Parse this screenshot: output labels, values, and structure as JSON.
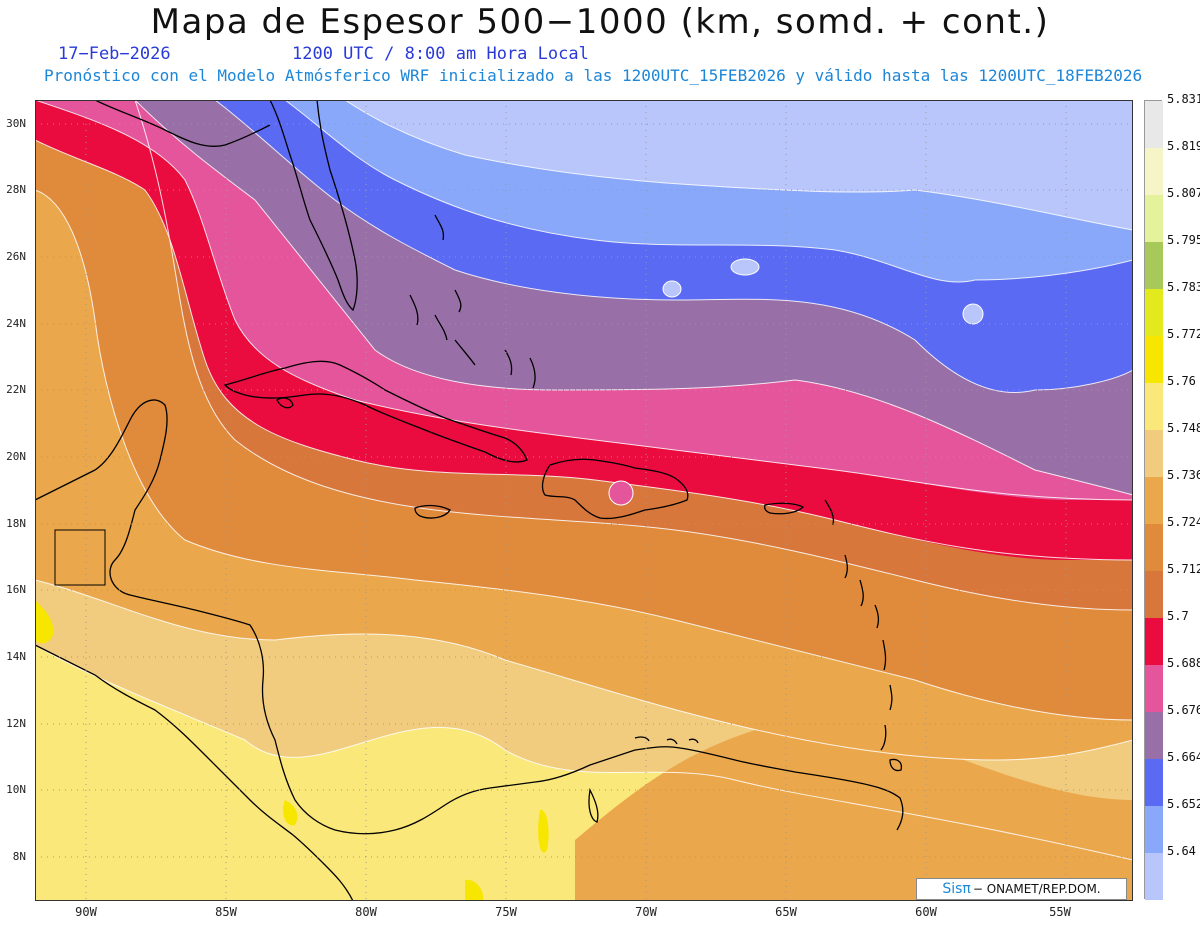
{
  "header": {
    "title": "Mapa de Espesor 500−1000 (km, somd. + cont.)",
    "date": "17−Feb−2026",
    "utc": "1200 UTC / 8:00 am Hora Local",
    "forecast": "Pronóstico con el Modelo Atmósferico WRF inicializado a las 1200UTC_15FEB2026 y válido hasta las  1200UTC_18FEB2026"
  },
  "axes": {
    "lat_labels": [
      "30N",
      "28N",
      "26N",
      "24N",
      "22N",
      "20N",
      "18N",
      "16N",
      "14N",
      "12N",
      "10N",
      "8N"
    ],
    "lon_labels": [
      "90W",
      "85W",
      "80W",
      "75W",
      "70W",
      "65W",
      "60W",
      "55W"
    ],
    "lat_range": [
      6.7,
      30.7
    ],
    "lon_range": [
      -91.8,
      -52.6
    ]
  },
  "colorbar": {
    "levels": [
      "5.831",
      "5.819",
      "5.807",
      "5.795",
      "5.783",
      "5.772",
      "5.76",
      "5.748",
      "5.736",
      "5.724",
      "5.712",
      "5.7",
      "5.688",
      "5.676",
      "5.664",
      "5.652",
      "5.64"
    ],
    "colors": [
      "#e8e8e8",
      "#f5f5c8",
      "#e4f29c",
      "#a7c95a",
      "#e2ea1e",
      "#f7e600",
      "#fbe87a",
      "#f2cc7e",
      "#eba74c",
      "#e08a3c",
      "#d7773c",
      "#ea0c3e",
      "#e5559c",
      "#986fa6",
      "#5a6af2",
      "#8aa8fa",
      "#b8c6fc"
    ]
  },
  "credit": {
    "brand": "Sisπ",
    "text": "− ONAMET/REP.DOM."
  }
}
